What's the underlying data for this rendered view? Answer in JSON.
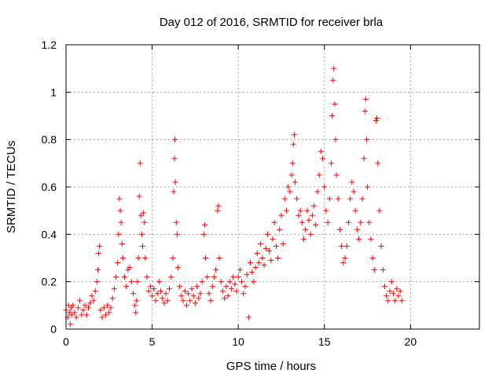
{
  "chart_data": {
    "type": "scatter",
    "title": "Day 012 of 2016, SRMTID for receiver brla",
    "xlabel": "GPS time / hours",
    "ylabel": "SRMTID / TECUs",
    "xlim": [
      0,
      24
    ],
    "ylim": [
      0,
      1.2
    ],
    "grid": true,
    "marker": "+",
    "color": "#ff0000",
    "xticks": [
      0,
      5,
      10,
      15,
      20
    ],
    "xtick_labels": [
      "0",
      "5",
      "10",
      "15",
      "20"
    ],
    "yticks": [
      0,
      0.2,
      0.4,
      0.6,
      0.8,
      1,
      1.2
    ],
    "ytick_labels": [
      "0",
      "0.2",
      "0.4",
      "0.6",
      "0.8",
      "1",
      "1.2"
    ],
    "series": [
      {
        "name": "SRMTID brla",
        "points": [
          [
            0.0,
            0.08
          ],
          [
            0.1,
            0.05
          ],
          [
            0.15,
            0.1
          ],
          [
            0.2,
            0.07
          ],
          [
            0.25,
            0.02
          ],
          [
            0.3,
            0.09
          ],
          [
            0.35,
            0.06
          ],
          [
            0.4,
            0.1
          ],
          [
            0.5,
            0.07
          ],
          [
            0.6,
            0.05
          ],
          [
            0.7,
            0.09
          ],
          [
            0.8,
            0.12
          ],
          [
            0.9,
            0.06
          ],
          [
            1.0,
            0.08
          ],
          [
            1.1,
            0.1
          ],
          [
            1.2,
            0.06
          ],
          [
            1.3,
            0.09
          ],
          [
            1.4,
            0.11
          ],
          [
            1.5,
            0.14
          ],
          [
            1.6,
            0.12
          ],
          [
            1.7,
            0.16
          ],
          [
            1.8,
            0.2
          ],
          [
            1.85,
            0.25
          ],
          [
            1.9,
            0.32
          ],
          [
            1.95,
            0.35
          ],
          [
            2.0,
            0.08
          ],
          [
            2.1,
            0.05
          ],
          [
            2.2,
            0.09
          ],
          [
            2.3,
            0.06
          ],
          [
            2.4,
            0.1
          ],
          [
            2.5,
            0.07
          ],
          [
            2.6,
            0.09
          ],
          [
            2.7,
            0.13
          ],
          [
            2.8,
            0.17
          ],
          [
            2.9,
            0.22
          ],
          [
            3.0,
            0.28
          ],
          [
            3.05,
            0.4
          ],
          [
            3.1,
            0.55
          ],
          [
            3.15,
            0.5
          ],
          [
            3.2,
            0.45
          ],
          [
            3.25,
            0.36
          ],
          [
            3.3,
            0.3
          ],
          [
            3.4,
            0.22
          ],
          [
            3.5,
            0.18
          ],
          [
            3.6,
            0.25
          ],
          [
            3.7,
            0.26
          ],
          [
            3.8,
            0.2
          ],
          [
            3.9,
            0.15
          ],
          [
            4.0,
            0.1
          ],
          [
            4.05,
            0.07
          ],
          [
            4.1,
            0.12
          ],
          [
            4.15,
            0.2
          ],
          [
            4.2,
            0.3
          ],
          [
            4.25,
            0.56
          ],
          [
            4.3,
            0.7
          ],
          [
            4.35,
            0.48
          ],
          [
            4.4,
            0.4
          ],
          [
            4.45,
            0.35
          ],
          [
            4.5,
            0.49
          ],
          [
            4.55,
            0.45
          ],
          [
            4.6,
            0.3
          ],
          [
            4.7,
            0.22
          ],
          [
            4.8,
            0.16
          ],
          [
            4.9,
            0.18
          ],
          [
            5.0,
            0.14
          ],
          [
            5.1,
            0.17
          ],
          [
            5.2,
            0.12
          ],
          [
            5.3,
            0.15
          ],
          [
            5.4,
            0.2
          ],
          [
            5.5,
            0.16
          ],
          [
            5.6,
            0.13
          ],
          [
            5.7,
            0.11
          ],
          [
            5.8,
            0.15
          ],
          [
            5.9,
            0.12
          ],
          [
            6.0,
            0.17
          ],
          [
            6.1,
            0.22
          ],
          [
            6.2,
            0.3
          ],
          [
            6.25,
            0.58
          ],
          [
            6.3,
            0.72
          ],
          [
            6.32,
            0.8
          ],
          [
            6.35,
            0.62
          ],
          [
            6.4,
            0.45
          ],
          [
            6.45,
            0.4
          ],
          [
            6.5,
            0.26
          ],
          [
            6.6,
            0.18
          ],
          [
            6.7,
            0.14
          ],
          [
            6.8,
            0.12
          ],
          [
            6.9,
            0.16
          ],
          [
            7.0,
            0.1
          ],
          [
            7.1,
            0.15
          ],
          [
            7.2,
            0.12
          ],
          [
            7.3,
            0.17
          ],
          [
            7.4,
            0.14
          ],
          [
            7.5,
            0.11
          ],
          [
            7.6,
            0.18
          ],
          [
            7.7,
            0.13
          ],
          [
            7.8,
            0.15
          ],
          [
            7.9,
            0.2
          ],
          [
            8.0,
            0.4
          ],
          [
            8.05,
            0.44
          ],
          [
            8.1,
            0.3
          ],
          [
            8.2,
            0.22
          ],
          [
            8.3,
            0.15
          ],
          [
            8.4,
            0.12
          ],
          [
            8.5,
            0.18
          ],
          [
            8.6,
            0.22
          ],
          [
            8.7,
            0.25
          ],
          [
            8.8,
            0.5
          ],
          [
            8.85,
            0.52
          ],
          [
            8.9,
            0.3
          ],
          [
            9.0,
            0.2
          ],
          [
            9.1,
            0.16
          ],
          [
            9.2,
            0.13
          ],
          [
            9.3,
            0.18
          ],
          [
            9.4,
            0.14
          ],
          [
            9.5,
            0.2
          ],
          [
            9.6,
            0.17
          ],
          [
            9.7,
            0.22
          ],
          [
            9.8,
            0.19
          ],
          [
            9.9,
            0.16
          ],
          [
            10.0,
            0.22
          ],
          [
            10.1,
            0.25
          ],
          [
            10.2,
            0.2
          ],
          [
            10.3,
            0.15
          ],
          [
            10.4,
            0.18
          ],
          [
            10.5,
            0.23
          ],
          [
            10.6,
            0.05
          ],
          [
            10.7,
            0.28
          ],
          [
            10.8,
            0.24
          ],
          [
            10.9,
            0.2
          ],
          [
            11.0,
            0.26
          ],
          [
            11.1,
            0.32
          ],
          [
            11.2,
            0.28
          ],
          [
            11.3,
            0.36
          ],
          [
            11.4,
            0.3
          ],
          [
            11.5,
            0.27
          ],
          [
            11.6,
            0.34
          ],
          [
            11.7,
            0.4
          ],
          [
            11.8,
            0.33
          ],
          [
            11.9,
            0.29
          ],
          [
            12.0,
            0.38
          ],
          [
            12.1,
            0.45
          ],
          [
            12.2,
            0.35
          ],
          [
            12.3,
            0.3
          ],
          [
            12.4,
            0.42
          ],
          [
            12.5,
            0.48
          ],
          [
            12.6,
            0.36
          ],
          [
            12.7,
            0.55
          ],
          [
            12.8,
            0.5
          ],
          [
            12.9,
            0.6
          ],
          [
            13.0,
            0.58
          ],
          [
            13.1,
            0.65
          ],
          [
            13.15,
            0.7
          ],
          [
            13.2,
            0.78
          ],
          [
            13.25,
            0.82
          ],
          [
            13.3,
            0.62
          ],
          [
            13.4,
            0.55
          ],
          [
            13.5,
            0.48
          ],
          [
            13.6,
            0.5
          ],
          [
            13.7,
            0.45
          ],
          [
            13.8,
            0.38
          ],
          [
            13.9,
            0.42
          ],
          [
            14.0,
            0.5
          ],
          [
            14.1,
            0.46
          ],
          [
            14.2,
            0.4
          ],
          [
            14.3,
            0.48
          ],
          [
            14.4,
            0.52
          ],
          [
            14.5,
            0.44
          ],
          [
            14.6,
            0.58
          ],
          [
            14.7,
            0.65
          ],
          [
            14.8,
            0.75
          ],
          [
            14.9,
            0.72
          ],
          [
            15.0,
            0.6
          ],
          [
            15.1,
            0.5
          ],
          [
            15.2,
            0.45
          ],
          [
            15.3,
            0.55
          ],
          [
            15.4,
            0.7
          ],
          [
            15.45,
            0.9
          ],
          [
            15.5,
            1.05
          ],
          [
            15.55,
            1.1
          ],
          [
            15.6,
            0.95
          ],
          [
            15.65,
            0.8
          ],
          [
            15.7,
            0.65
          ],
          [
            15.8,
            0.55
          ],
          [
            15.9,
            0.42
          ],
          [
            16.0,
            0.35
          ],
          [
            16.1,
            0.28
          ],
          [
            16.2,
            0.3
          ],
          [
            16.3,
            0.35
          ],
          [
            16.4,
            0.45
          ],
          [
            16.5,
            0.55
          ],
          [
            16.6,
            0.62
          ],
          [
            16.7,
            0.58
          ],
          [
            16.8,
            0.5
          ],
          [
            16.9,
            0.42
          ],
          [
            17.0,
            0.38
          ],
          [
            17.1,
            0.45
          ],
          [
            17.2,
            0.55
          ],
          [
            17.3,
            0.72
          ],
          [
            17.35,
            0.92
          ],
          [
            17.4,
            0.97
          ],
          [
            17.45,
            0.8
          ],
          [
            17.5,
            0.6
          ],
          [
            17.6,
            0.45
          ],
          [
            17.7,
            0.38
          ],
          [
            17.8,
            0.3
          ],
          [
            17.9,
            0.25
          ],
          [
            18.0,
            0.88
          ],
          [
            18.05,
            0.89
          ],
          [
            18.1,
            0.7
          ],
          [
            18.2,
            0.5
          ],
          [
            18.3,
            0.35
          ],
          [
            18.4,
            0.25
          ],
          [
            18.5,
            0.18
          ],
          [
            18.6,
            0.14
          ],
          [
            18.7,
            0.12
          ],
          [
            18.8,
            0.16
          ],
          [
            18.9,
            0.2
          ],
          [
            19.0,
            0.15
          ],
          [
            19.1,
            0.12
          ],
          [
            19.2,
            0.17
          ],
          [
            19.3,
            0.14
          ],
          [
            19.4,
            0.16
          ],
          [
            19.5,
            0.12
          ]
        ]
      }
    ]
  }
}
